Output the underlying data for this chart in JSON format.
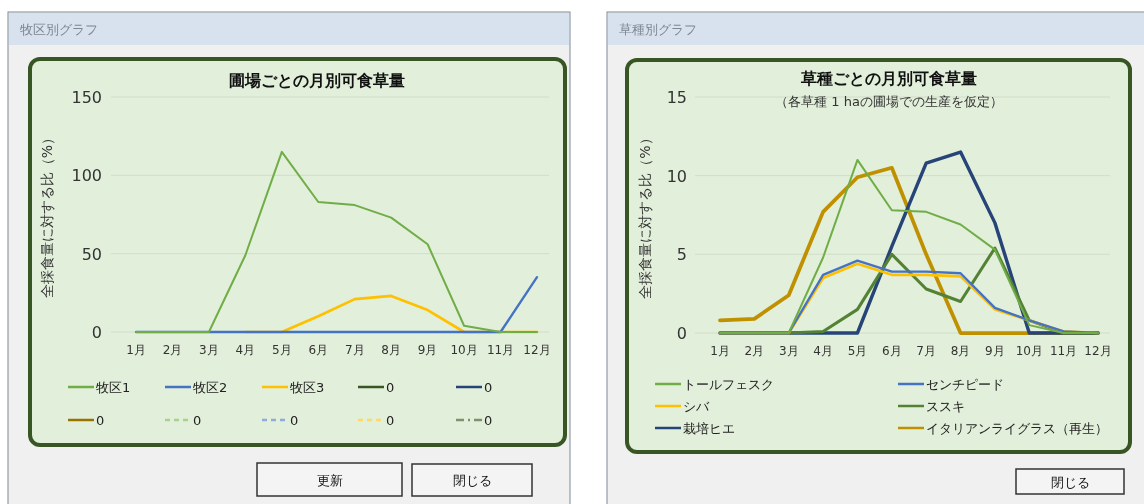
{
  "chart_data": [
    {
      "type": "line",
      "title": "圃場ごとの月別可食草量",
      "ylabel": "全採食量に対する比（%）",
      "categories": [
        "1月",
        "2月",
        "3月",
        "4月",
        "5月",
        "6月",
        "7月",
        "8月",
        "9月",
        "10月",
        "11月",
        "12月"
      ],
      "ylim": [
        0,
        150
      ],
      "yticks": [
        0,
        50,
        100,
        150
      ],
      "grid": "y",
      "legend": "bottom",
      "annotations": [
        "牧区別グラフ",
        "更新",
        "閉じる"
      ],
      "series": [
        {
          "name": "牧区1",
          "color": "#70ad47",
          "values": [
            0,
            0,
            0,
            49,
            115,
            83,
            81,
            73,
            56,
            4,
            0,
            0
          ]
        },
        {
          "name": "牧区2",
          "color": "#4472c4",
          "values": [
            0,
            0,
            0,
            0,
            0,
            0,
            0,
            0,
            0,
            0,
            0,
            35
          ]
        },
        {
          "name": "牧区3",
          "color": "#ffc000",
          "values": [
            null,
            null,
            null,
            0,
            0,
            10,
            21,
            23,
            14,
            0,
            0,
            0
          ]
        },
        {
          "name": "0",
          "color": "#375623",
          "values": [
            null,
            null,
            null,
            null,
            null,
            null,
            null,
            null,
            null,
            null,
            null,
            null
          ]
        },
        {
          "name": "0",
          "color": "#264478",
          "values": [
            null,
            null,
            null,
            null,
            null,
            null,
            null,
            null,
            null,
            null,
            null,
            null
          ]
        },
        {
          "name": "0",
          "color": "#997300",
          "values": [
            null,
            null,
            null,
            null,
            null,
            null,
            null,
            null,
            null,
            null,
            null,
            null
          ]
        },
        {
          "name": "0",
          "color": "#a9d18e",
          "line_style": "dashed",
          "values": [
            null,
            null,
            null,
            null,
            null,
            null,
            null,
            null,
            null,
            null,
            null,
            null
          ]
        },
        {
          "name": "0",
          "color": "#8faadc",
          "line_style": "dashed",
          "values": [
            null,
            null,
            null,
            null,
            null,
            null,
            null,
            null,
            null,
            null,
            null,
            null
          ]
        },
        {
          "name": "0",
          "color": "#ffd966",
          "line_style": "dashed",
          "values": [
            null,
            null,
            null,
            null,
            null,
            null,
            null,
            null,
            null,
            null,
            null,
            null
          ]
        },
        {
          "name": "0",
          "color": "#7f8f6f",
          "line_style": "dashdot",
          "values": [
            null,
            null,
            null,
            null,
            null,
            null,
            null,
            null,
            null,
            null,
            null,
            null
          ]
        }
      ]
    },
    {
      "type": "line",
      "title": "草種ごとの月別可食草量",
      "subtitle": "（各草種 1 haの圃場での生産を仮定）",
      "ylabel": "全採食量に対する比（%）",
      "categories": [
        "1月",
        "2月",
        "3月",
        "4月",
        "5月",
        "6月",
        "7月",
        "8月",
        "9月",
        "10月",
        "11月",
        "12月"
      ],
      "ylim": [
        0,
        15
      ],
      "yticks": [
        0,
        5,
        10,
        15
      ],
      "grid": "y",
      "legend": "bottom",
      "annotations": [
        "草種別グラフ",
        "閉じる"
      ],
      "series": [
        {
          "name": "トールフェスク",
          "color": "#70ad47",
          "values": [
            0,
            0,
            0,
            4.8,
            11.0,
            7.8,
            7.7,
            6.9,
            5.3,
            0.5,
            0,
            0
          ]
        },
        {
          "name": "センチピード",
          "color": "#4472c4",
          "values": [
            0,
            0,
            0,
            3.7,
            4.6,
            3.9,
            3.9,
            3.8,
            1.6,
            0.8,
            0.1,
            0
          ]
        },
        {
          "name": "シバ",
          "color": "#ffc000",
          "values": [
            0,
            0,
            0,
            3.5,
            4.4,
            3.7,
            3.7,
            3.6,
            1.5,
            0.8,
            0.1,
            0
          ]
        },
        {
          "name": "ススキ",
          "color": "#548235",
          "values": [
            0,
            0,
            0,
            0.1,
            1.5,
            5.0,
            2.8,
            2.0,
            5.4,
            0.8,
            0,
            0
          ]
        },
        {
          "name": "栽培ヒエ",
          "color": "#264478",
          "values": [
            0,
            0,
            0,
            0,
            0,
            5.5,
            10.8,
            11.5,
            7.0,
            0,
            0,
            0
          ]
        },
        {
          "name": "イタリアンライグラス（再生）",
          "color": "#bf9000",
          "values": [
            0.8,
            0.9,
            2.4,
            7.7,
            9.9,
            10.5,
            5.0,
            0,
            0,
            0,
            0,
            0
          ]
        }
      ]
    }
  ]
}
